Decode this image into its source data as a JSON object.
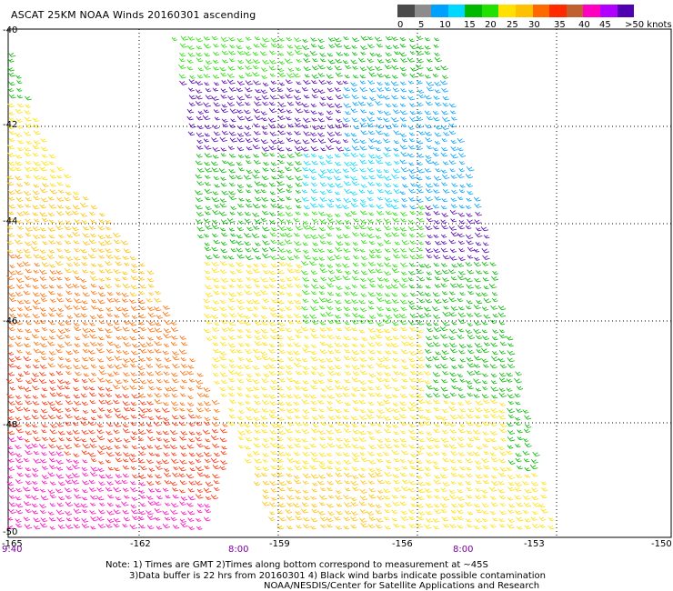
{
  "title": "ASCAT 25KM NOAA Winds 20160301 ascending",
  "legend": {
    "colors": [
      "#4a4a4a",
      "#8c8c8c",
      "#00a0ff",
      "#00d8ff",
      "#00b800",
      "#22e000",
      "#ffe000",
      "#ffc000",
      "#ff6a00",
      "#ff2a00",
      "#c06030",
      "#ff00c0",
      "#b000ff",
      "#5000b0"
    ],
    "labels": [
      "0",
      "5",
      "10",
      "15",
      "20",
      "25",
      "30",
      "35",
      "40",
      "45",
      ">50 knots"
    ]
  },
  "axes": {
    "x_ticks": [
      "-165",
      "-162",
      "-159",
      "-156",
      "-153",
      "-150"
    ],
    "y_ticks": [
      "-40",
      "-42",
      "-44",
      "-46",
      "-48",
      "-50"
    ],
    "time_labels": [
      "9:40",
      "8:00",
      "8:00"
    ]
  },
  "notes": {
    "line1": "Note: 1) Times are GMT 2)Times along bottom correspond to measurement at ~45S",
    "line2": "3)Data buffer is 22 hrs from 20160301 4) Black wind barbs indicate possible contamination",
    "line3": "NOAA/NESDIS/Center for Satellite Applications and Research"
  }
}
